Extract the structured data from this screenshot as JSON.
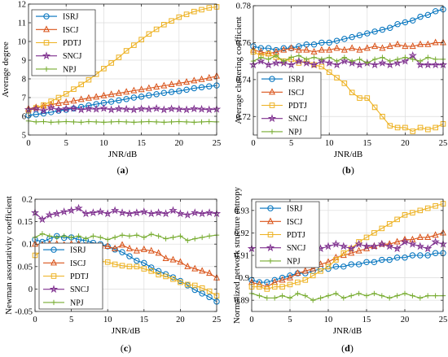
{
  "chart_data": [
    {
      "type": "line",
      "panel_label": "(a)",
      "xlabel": "JNR/dB",
      "ylabel": "Average degree",
      "xlim": [
        0,
        25
      ],
      "ylim": [
        5,
        12
      ],
      "xticks": [
        0,
        5,
        10,
        15,
        20,
        25
      ],
      "yticks": [
        5,
        6,
        7,
        8,
        9,
        10,
        11,
        12
      ],
      "grid": true,
      "legend_position": "top-left",
      "x": [
        0,
        1,
        2,
        3,
        4,
        5,
        6,
        7,
        8,
        9,
        10,
        11,
        12,
        13,
        14,
        15,
        16,
        17,
        18,
        19,
        20,
        21,
        22,
        23,
        24,
        25
      ],
      "series": [
        {
          "name": "ISRJ",
          "color": "#0072BD",
          "marker": "circle",
          "values": [
            6.05,
            6.1,
            6.15,
            6.22,
            6.3,
            6.35,
            6.42,
            6.5,
            6.58,
            6.65,
            6.72,
            6.78,
            6.85,
            6.92,
            7.0,
            7.05,
            7.12,
            7.18,
            7.25,
            7.3,
            7.35,
            7.42,
            7.5,
            7.55,
            7.6,
            7.65
          ]
        },
        {
          "name": "ISCJ",
          "color": "#D95319",
          "marker": "triangle",
          "values": [
            6.4,
            6.47,
            6.55,
            6.62,
            6.7,
            6.75,
            6.82,
            6.9,
            6.97,
            7.03,
            7.1,
            7.17,
            7.23,
            7.3,
            7.37,
            7.43,
            7.5,
            7.57,
            7.63,
            7.7,
            7.77,
            7.83,
            7.9,
            7.97,
            8.05,
            8.15
          ]
        },
        {
          "name": "PDTJ",
          "color": "#EDB120",
          "marker": "square",
          "values": [
            6.3,
            6.45,
            6.6,
            6.8,
            7.0,
            7.2,
            7.45,
            7.7,
            7.95,
            8.25,
            8.55,
            8.85,
            9.15,
            9.5,
            9.8,
            10.1,
            10.4,
            10.65,
            10.9,
            11.1,
            11.3,
            11.45,
            11.6,
            11.7,
            11.8,
            11.85
          ]
        },
        {
          "name": "SNCJ",
          "color": "#7E2F8E",
          "marker": "star",
          "values": [
            6.35,
            6.4,
            6.3,
            6.45,
            6.35,
            6.4,
            6.42,
            6.35,
            6.4,
            6.38,
            6.42,
            6.35,
            6.4,
            6.38,
            6.35,
            6.4,
            6.38,
            6.42,
            6.35,
            6.4,
            6.38,
            6.35,
            6.4,
            6.38,
            6.35,
            6.38
          ]
        },
        {
          "name": "NPJ",
          "color": "#77AC30",
          "marker": "plus",
          "values": [
            5.75,
            5.7,
            5.72,
            5.68,
            5.7,
            5.72,
            5.7,
            5.68,
            5.72,
            5.7,
            5.68,
            5.7,
            5.72,
            5.7,
            5.68,
            5.7,
            5.72,
            5.7,
            5.68,
            5.7,
            5.72,
            5.7,
            5.68,
            5.7,
            5.72,
            5.7
          ]
        }
      ]
    },
    {
      "type": "line",
      "panel_label": "(b)",
      "xlabel": "JNR/dB",
      "ylabel": "Average clustering coefficient",
      "xlim": [
        0,
        25
      ],
      "ylim": [
        0.71,
        0.78
      ],
      "xticks": [
        0,
        5,
        10,
        15,
        20,
        25
      ],
      "yticks": [
        0.72,
        0.74,
        0.76,
        0.78
      ],
      "grid": true,
      "legend_position": "bottom-left",
      "x": [
        0,
        1,
        2,
        3,
        4,
        5,
        6,
        7,
        8,
        9,
        10,
        11,
        12,
        13,
        14,
        15,
        16,
        17,
        18,
        19,
        20,
        21,
        22,
        23,
        24,
        25
      ],
      "series": [
        {
          "name": "ISRJ",
          "color": "#0072BD",
          "marker": "circle",
          "values": [
            0.758,
            0.757,
            0.757,
            0.756,
            0.757,
            0.757,
            0.758,
            0.759,
            0.759,
            0.76,
            0.76,
            0.761,
            0.762,
            0.763,
            0.764,
            0.765,
            0.766,
            0.767,
            0.768,
            0.77,
            0.771,
            0.772,
            0.774,
            0.775,
            0.777,
            0.778
          ]
        },
        {
          "name": "ISCJ",
          "color": "#D95319",
          "marker": "triangle",
          "values": [
            0.756,
            0.755,
            0.754,
            0.755,
            0.756,
            0.757,
            0.756,
            0.756,
            0.755,
            0.756,
            0.756,
            0.757,
            0.756,
            0.757,
            0.756,
            0.757,
            0.758,
            0.757,
            0.758,
            0.759,
            0.758,
            0.758,
            0.759,
            0.759,
            0.76,
            0.76
          ]
        },
        {
          "name": "PDTJ",
          "color": "#EDB120",
          "marker": "square",
          "values": [
            0.755,
            0.753,
            0.754,
            0.752,
            0.75,
            0.751,
            0.749,
            0.75,
            0.748,
            0.747,
            0.744,
            0.741,
            0.738,
            0.733,
            0.73,
            0.73,
            0.725,
            0.72,
            0.715,
            0.714,
            0.714,
            0.712,
            0.714,
            0.713,
            0.714,
            0.716
          ]
        },
        {
          "name": "SNCJ",
          "color": "#7E2F8E",
          "marker": "star",
          "values": [
            0.748,
            0.75,
            0.748,
            0.749,
            0.749,
            0.748,
            0.75,
            0.749,
            0.748,
            0.75,
            0.749,
            0.748,
            0.75,
            0.749,
            0.748,
            0.749,
            0.748,
            0.749,
            0.748,
            0.749,
            0.75,
            0.753,
            0.748,
            0.748,
            0.748,
            0.748
          ]
        },
        {
          "name": "NPJ",
          "color": "#77AC30",
          "marker": "plus",
          "values": [
            0.75,
            0.752,
            0.751,
            0.753,
            0.75,
            0.752,
            0.753,
            0.751,
            0.752,
            0.751,
            0.752,
            0.75,
            0.752,
            0.75,
            0.751,
            0.749,
            0.751,
            0.752,
            0.75,
            0.751,
            0.752,
            0.751,
            0.75,
            0.752,
            0.751,
            0.751
          ]
        }
      ]
    },
    {
      "type": "line",
      "panel_label": "(c)",
      "xlabel": "JNR/dB",
      "ylabel": "Newman assortativity coefficient",
      "xlim": [
        0,
        25
      ],
      "ylim": [
        -0.05,
        0.2
      ],
      "xticks": [
        0,
        5,
        10,
        15,
        20,
        25
      ],
      "yticks": [
        -0.05,
        0,
        0.05,
        0.1,
        0.15,
        0.2
      ],
      "ytick_labels": [
        "-0.05",
        "0",
        "0.05",
        "0.1",
        "0.15",
        "0.2"
      ],
      "grid": true,
      "legend_position": "bottom-left",
      "x": [
        0,
        1,
        2,
        3,
        4,
        5,
        6,
        7,
        8,
        9,
        10,
        11,
        12,
        13,
        14,
        15,
        16,
        17,
        18,
        19,
        20,
        21,
        22,
        23,
        24,
        25
      ],
      "series": [
        {
          "name": "ISRJ",
          "color": "#0072BD",
          "marker": "circle",
          "values": [
            0.11,
            0.105,
            0.112,
            0.118,
            0.114,
            0.115,
            0.11,
            0.108,
            0.103,
            0.1,
            0.095,
            0.088,
            0.082,
            0.073,
            0.063,
            0.058,
            0.048,
            0.04,
            0.033,
            0.026,
            0.018,
            0.008,
            -0.002,
            -0.01,
            -0.018,
            -0.028
          ]
        },
        {
          "name": "ISCJ",
          "color": "#D95319",
          "marker": "triangle",
          "values": [
            0.1,
            0.098,
            0.1,
            0.1,
            0.098,
            0.1,
            0.1,
            0.096,
            0.095,
            0.096,
            0.095,
            0.09,
            0.098,
            0.09,
            0.085,
            0.088,
            0.085,
            0.08,
            0.068,
            0.065,
            0.06,
            0.05,
            0.045,
            0.04,
            0.035,
            0.025
          ]
        },
        {
          "name": "PDTJ",
          "color": "#EDB120",
          "marker": "square",
          "values": [
            0.075,
            0.085,
            0.072,
            0.068,
            0.068,
            0.065,
            0.068,
            0.062,
            0.06,
            0.062,
            0.06,
            0.055,
            0.052,
            0.05,
            0.05,
            0.045,
            0.04,
            0.032,
            0.028,
            0.022,
            0.015,
            0.01,
            0.008,
            0.002,
            -0.005,
            -0.015
          ]
        },
        {
          "name": "SNCJ",
          "color": "#7E2F8E",
          "marker": "star",
          "values": [
            0.17,
            0.155,
            0.165,
            0.168,
            0.172,
            0.175,
            0.18,
            0.168,
            0.17,
            0.172,
            0.168,
            0.175,
            0.17,
            0.168,
            0.17,
            0.172,
            0.168,
            0.17,
            0.168,
            0.175,
            0.168,
            0.165,
            0.17,
            0.168,
            0.17,
            0.168
          ]
        },
        {
          "name": "NPJ",
          "color": "#77AC30",
          "marker": "plus",
          "values": [
            0.115,
            0.123,
            0.118,
            0.115,
            0.118,
            0.115,
            0.118,
            0.112,
            0.118,
            0.115,
            0.11,
            0.115,
            0.12,
            0.118,
            0.12,
            0.115,
            0.122,
            0.118,
            0.112,
            0.115,
            0.118,
            0.108,
            0.112,
            0.115,
            0.118,
            0.12
          ]
        }
      ]
    },
    {
      "type": "line",
      "panel_label": "(d)",
      "xlabel": "JNR/dB",
      "ylabel": "Normalized network structure entropy",
      "xlim": [
        0,
        25
      ],
      "ylim": [
        0.885,
        0.935
      ],
      "xticks": [
        0,
        5,
        10,
        15,
        20,
        25
      ],
      "yticks": [
        0.89,
        0.9,
        0.91,
        0.92,
        0.93
      ],
      "ytick_labels": [
        "0.89",
        "0.9",
        "0.91",
        "0.92",
        "0.93"
      ],
      "grid": true,
      "legend_position": "top-left",
      "x": [
        0,
        1,
        2,
        3,
        4,
        5,
        6,
        7,
        8,
        9,
        10,
        11,
        12,
        13,
        14,
        15,
        16,
        17,
        18,
        19,
        20,
        21,
        22,
        23,
        24,
        25
      ],
      "series": [
        {
          "name": "ISRJ",
          "color": "#0072BD",
          "marker": "circle",
          "values": [
            0.899,
            0.898,
            0.898,
            0.899,
            0.9,
            0.901,
            0.902,
            0.902,
            0.903,
            0.904,
            0.904,
            0.905,
            0.905,
            0.906,
            0.906,
            0.907,
            0.907,
            0.908,
            0.908,
            0.909,
            0.909,
            0.91,
            0.91,
            0.91,
            0.911,
            0.911
          ]
        },
        {
          "name": "ISCJ",
          "color": "#D95319",
          "marker": "triangle",
          "values": [
            0.898,
            0.897,
            0.896,
            0.898,
            0.899,
            0.9,
            0.902,
            0.903,
            0.904,
            0.906,
            0.907,
            0.909,
            0.91,
            0.911,
            0.912,
            0.913,
            0.914,
            0.915,
            0.915,
            0.916,
            0.917,
            0.917,
            0.918,
            0.918,
            0.919,
            0.92
          ]
        },
        {
          "name": "PDTJ",
          "color": "#EDB120",
          "marker": "square",
          "values": [
            0.896,
            0.896,
            0.895,
            0.896,
            0.896,
            0.897,
            0.898,
            0.899,
            0.901,
            0.903,
            0.905,
            0.908,
            0.911,
            0.913,
            0.916,
            0.918,
            0.92,
            0.922,
            0.924,
            0.926,
            0.928,
            0.929,
            0.93,
            0.931,
            0.932,
            0.933
          ]
        },
        {
          "name": "SNCJ",
          "color": "#7E2F8E",
          "marker": "star",
          "values": [
            0.913,
            0.914,
            0.912,
            0.913,
            0.914,
            0.913,
            0.914,
            0.913,
            0.914,
            0.913,
            0.914,
            0.915,
            0.914,
            0.913,
            0.915,
            0.914,
            0.914,
            0.915,
            0.914,
            0.913,
            0.916,
            0.915,
            0.914,
            0.913,
            0.916,
            0.915
          ]
        },
        {
          "name": "NPJ",
          "color": "#77AC30",
          "marker": "plus",
          "values": [
            0.893,
            0.892,
            0.891,
            0.891,
            0.892,
            0.891,
            0.893,
            0.892,
            0.89,
            0.891,
            0.892,
            0.893,
            0.891,
            0.892,
            0.893,
            0.892,
            0.893,
            0.892,
            0.891,
            0.892,
            0.893,
            0.892,
            0.891,
            0.892,
            0.892,
            0.892
          ]
        }
      ]
    }
  ]
}
